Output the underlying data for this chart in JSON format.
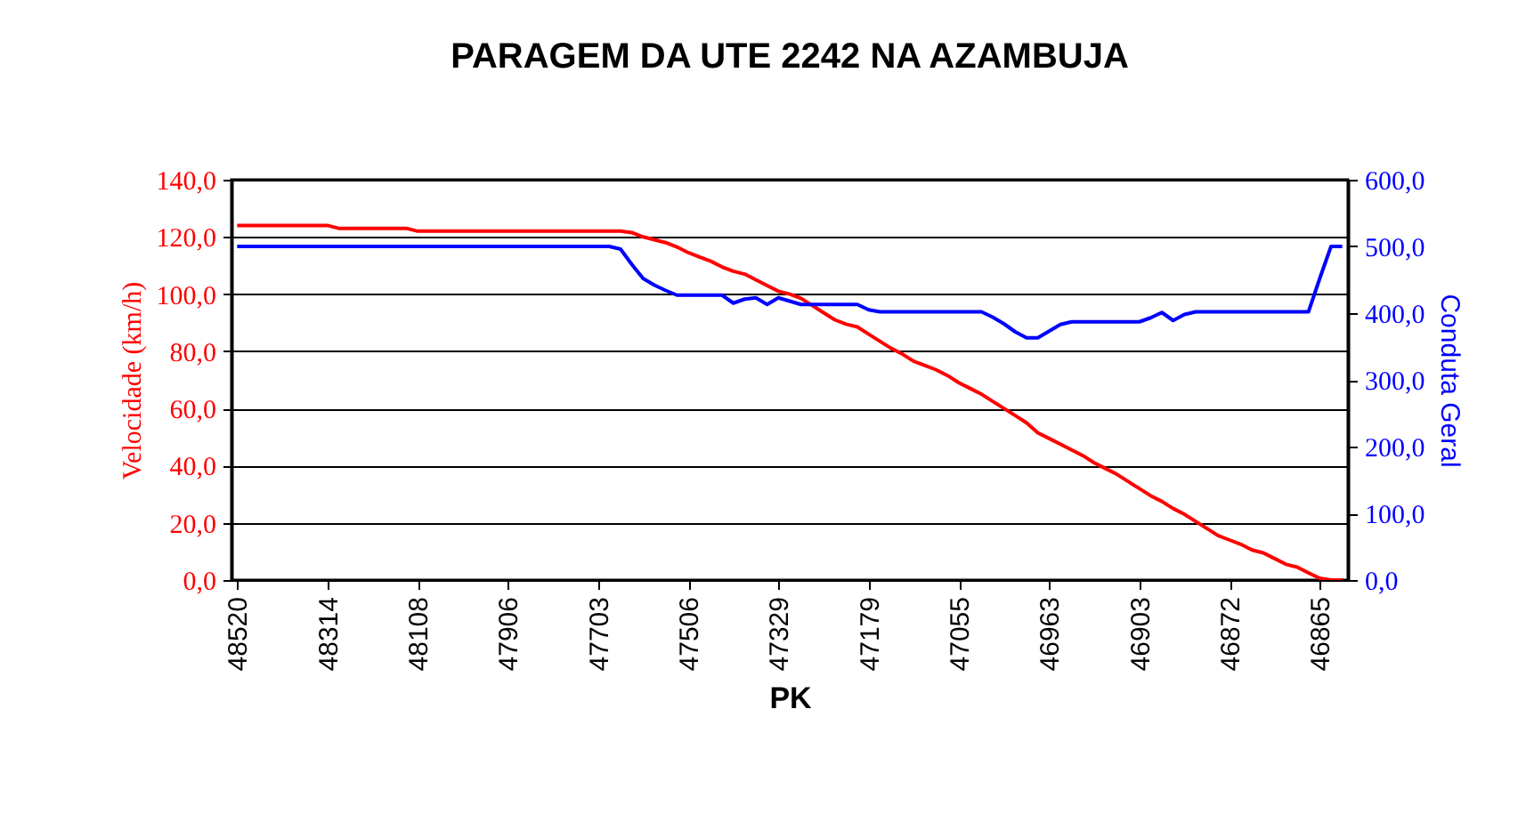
{
  "chart_data": {
    "type": "line",
    "title": "PARAGEM DA UTE 2242 NA AZAMBUJA",
    "xlabel": "PK",
    "ylabel": "Velocidade (km/h)",
    "y2label": "Conduta Geral",
    "categories": [
      "48520",
      null,
      null,
      null,
      null,
      null,
      null,
      null,
      "48314",
      null,
      null,
      null,
      null,
      null,
      null,
      null,
      "48108",
      null,
      null,
      null,
      null,
      null,
      null,
      null,
      "47906",
      null,
      null,
      null,
      null,
      null,
      null,
      null,
      "47703",
      null,
      null,
      null,
      null,
      null,
      null,
      null,
      "47506",
      null,
      null,
      null,
      null,
      null,
      null,
      null,
      "47329",
      null,
      null,
      null,
      null,
      null,
      null,
      null,
      "47179",
      null,
      null,
      null,
      null,
      null,
      null,
      null,
      "47055",
      null,
      null,
      null,
      null,
      null,
      null,
      null,
      "46963",
      null,
      null,
      null,
      null,
      null,
      null,
      null,
      "46903",
      null,
      null,
      null,
      null,
      null,
      null,
      null,
      "46872",
      null,
      null,
      null,
      null,
      null,
      null,
      null,
      "46865",
      null,
      null
    ],
    "series": [
      {
        "color": "#ff0000",
        "values": [
          124,
          124,
          124,
          124,
          124,
          124,
          124,
          124,
          124,
          123,
          123,
          123,
          123,
          123,
          123,
          123,
          122,
          122,
          122,
          122,
          122,
          122,
          122,
          122,
          122,
          122,
          122,
          122,
          122,
          122,
          122,
          122,
          122,
          122,
          122,
          121.5,
          120,
          119,
          118,
          116.5,
          114.5,
          113,
          111.5,
          109.5,
          108,
          107,
          105,
          103,
          101,
          100,
          98.5,
          96,
          93.5,
          91,
          89.5,
          88.5,
          86,
          83.5,
          81,
          79,
          76.5,
          75,
          73.5,
          71.5,
          69,
          67,
          65,
          62.5,
          60,
          57.5,
          55,
          51.5,
          49.5,
          47.5,
          45.5,
          43.5,
          41,
          39,
          37,
          34.5,
          32,
          29.5,
          27.5,
          25,
          23,
          20.5,
          18,
          15.5,
          14,
          12.5,
          10.5,
          9.5,
          7.5,
          5.5,
          4.5,
          2.5,
          0.6,
          0,
          0
        ]
      },
      {
        "color": "#0000ff",
        "axis": "y2",
        "values": [
          500,
          500,
          500,
          500,
          500,
          500,
          500,
          500,
          500,
          500,
          500,
          500,
          500,
          500,
          500,
          500,
          500,
          500,
          500,
          500,
          500,
          500,
          500,
          500,
          500,
          500,
          500,
          500,
          500,
          500,
          500,
          500,
          500,
          500,
          496,
          473,
          452,
          442,
          434,
          427,
          427,
          427,
          427,
          427,
          415,
          421,
          423,
          413,
          423,
          418,
          413,
          413,
          413,
          413,
          413,
          413,
          405,
          402,
          402,
          402,
          402,
          402,
          402,
          402,
          402,
          402,
          402,
          394,
          384,
          372,
          363,
          363,
          373,
          383,
          387,
          387,
          387,
          387,
          387,
          387,
          387,
          393,
          401,
          389,
          398,
          402,
          402,
          402,
          402,
          402,
          402,
          402,
          402,
          402,
          402,
          402,
          452,
          500,
          500
        ]
      }
    ],
    "ylim": [
      0,
      140
    ],
    "yticks": [
      {
        "value": 0,
        "label": "0,0"
      },
      {
        "value": 20,
        "label": "20,0"
      },
      {
        "value": 40,
        "label": "40,0"
      },
      {
        "value": 60,
        "label": "60,0"
      },
      {
        "value": 80,
        "label": "80,0"
      },
      {
        "value": 100,
        "label": "100,0"
      },
      {
        "value": 120,
        "label": "120,0"
      },
      {
        "value": 140,
        "label": "140,0"
      }
    ],
    "y2lim": [
      0,
      600
    ],
    "y2ticks": [
      {
        "value": 0,
        "label": "0,0"
      },
      {
        "value": 100,
        "label": "100,0"
      },
      {
        "value": 200,
        "label": "200,0"
      },
      {
        "value": 300,
        "label": "300,0"
      },
      {
        "value": 400,
        "label": "400,0"
      },
      {
        "value": 500,
        "label": "500,0"
      },
      {
        "value": 600,
        "label": "600,0"
      }
    ],
    "grid": "y",
    "marker": "none",
    "line_style": "solid"
  }
}
